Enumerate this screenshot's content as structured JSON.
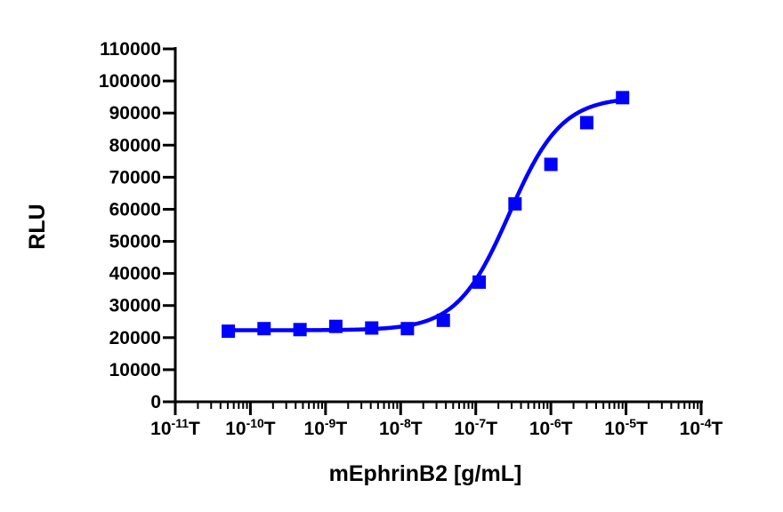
{
  "chart_data": {
    "type": "scatter",
    "xlabel": "mEphrinB2 [g/mL]",
    "ylabel": "RLU",
    "x_scale": "log10",
    "xlim": [
      1e-11,
      0.0001
    ],
    "ylim": [
      0,
      110000
    ],
    "y_ticks": [
      0,
      10000,
      20000,
      30000,
      40000,
      50000,
      60000,
      70000,
      80000,
      90000,
      100000,
      110000
    ],
    "x_ticks": [
      {
        "base": "10",
        "exp": "-11",
        "suffix": "T"
      },
      {
        "base": "10",
        "exp": "-10",
        "suffix": "T"
      },
      {
        "base": "10",
        "exp": "-9",
        "suffix": "T"
      },
      {
        "base": "10",
        "exp": "-8",
        "suffix": "T"
      },
      {
        "base": "10",
        "exp": "-7",
        "suffix": "T"
      },
      {
        "base": "10",
        "exp": "-6",
        "suffix": "T"
      },
      {
        "base": "10",
        "exp": "-5",
        "suffix": "T"
      },
      {
        "base": "10",
        "exp": "-4",
        "suffix": "T"
      }
    ],
    "series": [
      {
        "color": "#0000ff",
        "marker": "square",
        "x": [
          5.08e-11,
          1.52e-10,
          4.57e-10,
          1.37e-09,
          4.12e-09,
          1.23e-08,
          3.7e-08,
          1.11e-07,
          3.33e-07,
          1e-06,
          3e-06,
          9e-06
        ],
        "y": [
          22000,
          22800,
          22500,
          23500,
          23000,
          22800,
          25400,
          37300,
          61700,
          74000,
          87000,
          94800
        ]
      }
    ],
    "fit": {
      "model": "4PL",
      "color": "#0000ff",
      "bottom": 22300,
      "top": 95000,
      "ec50": 2.8e-07,
      "hill": 1.25,
      "x_range": [
        5.08e-11,
        9e-06
      ]
    }
  }
}
